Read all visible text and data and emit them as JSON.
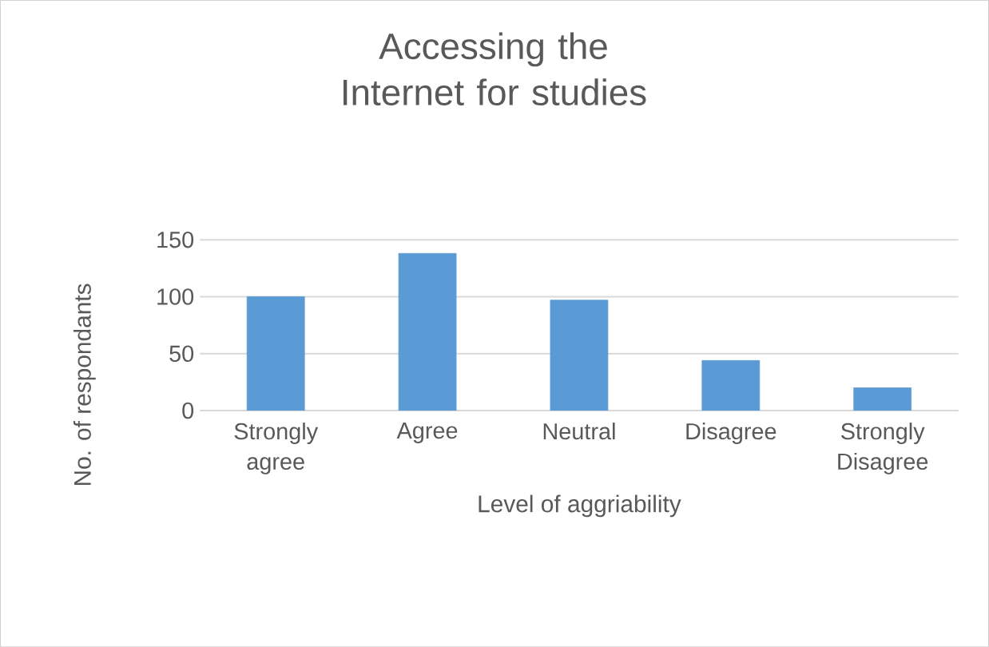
{
  "chart_data": {
    "type": "bar",
    "title": "Accessing the Internet for studies",
    "xlabel": "Level of aggriability",
    "ylabel": "No. of respondants",
    "categories": [
      "Strongly agree",
      "Agree",
      "Neutral",
      "Disagree",
      "Strongly Disagree"
    ],
    "values": [
      100,
      138,
      97,
      44,
      20
    ],
    "color": "#5b9bd5",
    "ylim": [
      0,
      150
    ],
    "yticks": [
      0,
      50,
      100,
      150
    ],
    "grid": "y"
  }
}
